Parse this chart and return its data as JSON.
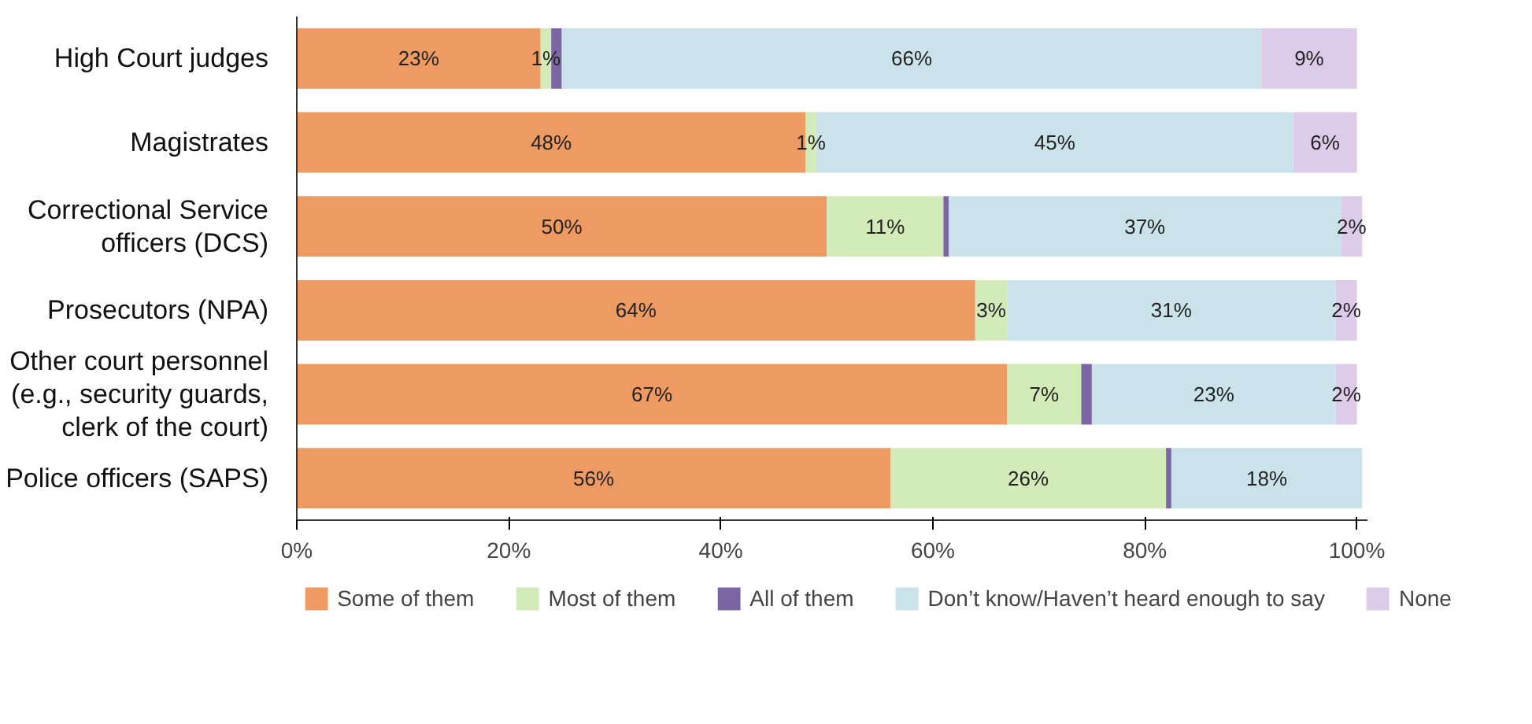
{
  "chart_data": {
    "type": "bar",
    "orientation": "horizontal",
    "stacked": true,
    "categories": [
      "High Court judges",
      "Magistrates",
      "Correctional Service officers (DCS)",
      "Prosecutors (NPA)",
      "Other court personnel (e.g., security guards, clerk of the court)",
      "Police officers (SAPS)"
    ],
    "series": [
      {
        "name": "Some of them",
        "color": "#ee9a63",
        "values": [
          23,
          48,
          50,
          64,
          67,
          56
        ],
        "value_labels": [
          "23%",
          "48%",
          "50%",
          "64%",
          "67%",
          "56%"
        ]
      },
      {
        "name": "Most of them",
        "color": "#d3ebb8",
        "values": [
          1,
          1,
          11,
          3,
          7,
          26
        ],
        "value_labels": [
          "1%",
          "1%",
          "11%",
          "3%",
          "7%",
          "26%"
        ]
      },
      {
        "name": "All of them",
        "color": "#7b66a3",
        "values": [
          1,
          null,
          0.5,
          null,
          1,
          0.5
        ],
        "value_labels": [
          null,
          null,
          null,
          null,
          null,
          null
        ]
      },
      {
        "name": "Don’t know/Haven’t heard enough to say",
        "color": "#cae3ea",
        "values": [
          66,
          45,
          37,
          31,
          23,
          18
        ],
        "value_labels": [
          "66%",
          "45%",
          "37%",
          "31%",
          "23%",
          "18%"
        ]
      },
      {
        "name": "None",
        "color": "#dccbe9",
        "values": [
          9,
          6,
          2,
          2,
          2,
          null
        ],
        "value_labels": [
          "9%",
          "6%",
          "2%",
          "2%",
          "2%",
          null
        ]
      }
    ],
    "xlim": [
      0,
      101
    ],
    "xticks": [
      {
        "value": 0,
        "label": "0%"
      },
      {
        "value": 20,
        "label": "20%"
      },
      {
        "value": 40,
        "label": "40%"
      },
      {
        "value": 60,
        "label": "60%"
      },
      {
        "value": 80,
        "label": "80%"
      },
      {
        "value": 100,
        "label": "100%"
      }
    ],
    "grid": false,
    "legend": "bottom"
  }
}
